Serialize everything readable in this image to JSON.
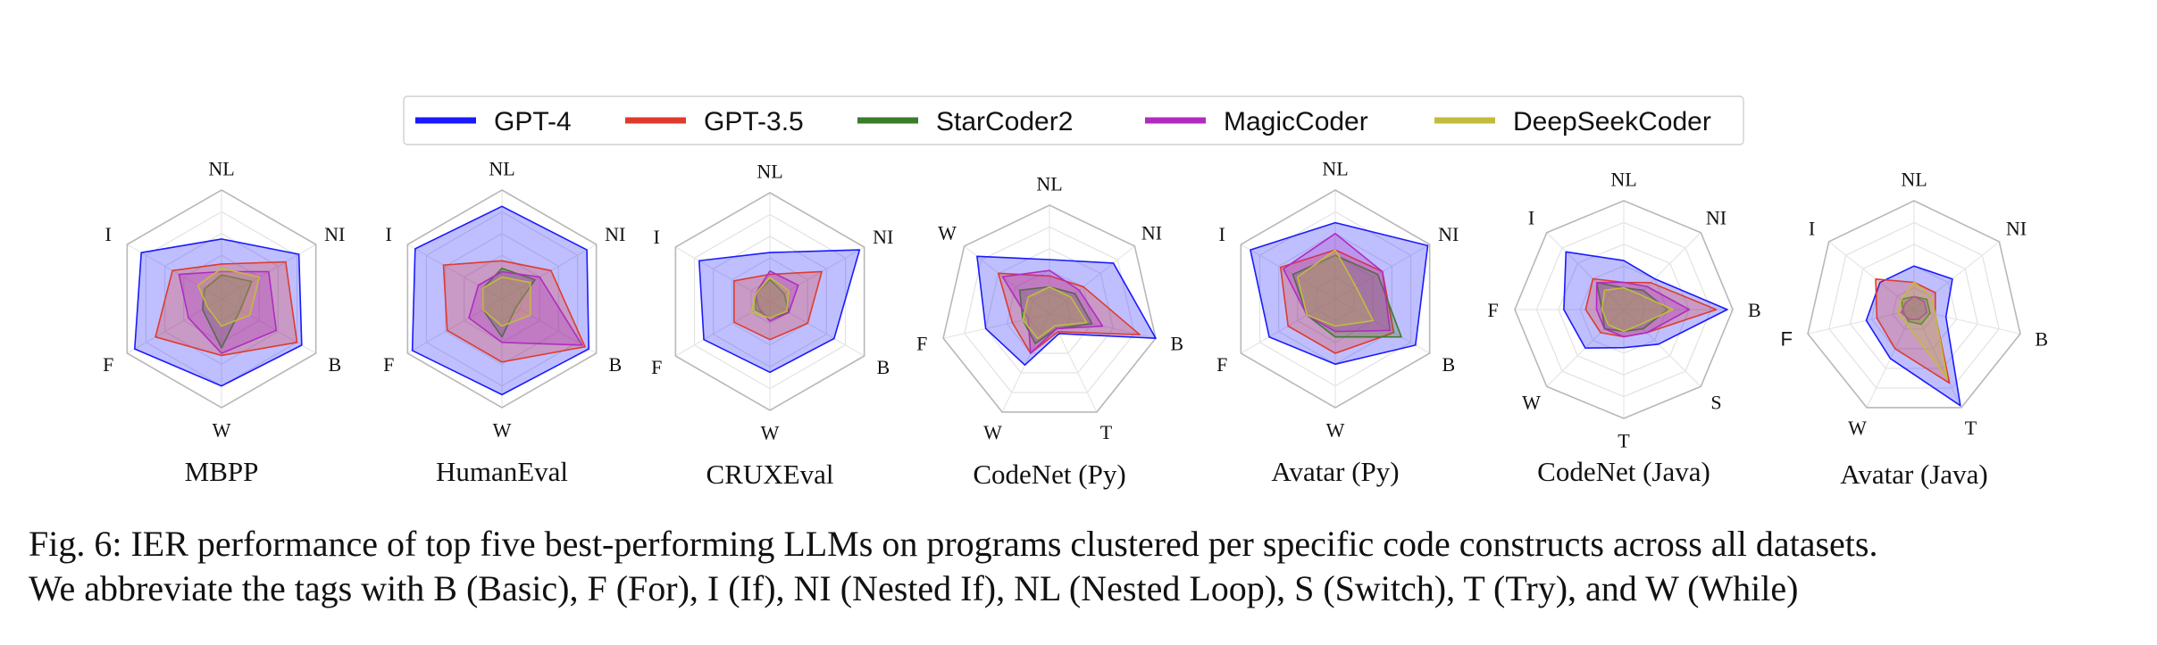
{
  "legend": [
    {
      "name": "GPT-4",
      "color": "#1a1aff"
    },
    {
      "name": "GPT-3.5",
      "color": "#e03a2e"
    },
    {
      "name": "StarCoder2",
      "color": "#3a7d2a"
    },
    {
      "name": "MagicCoder",
      "color": "#b02cc0"
    },
    {
      "name": "DeepSeekCoder",
      "color": "#c2bc3c"
    }
  ],
  "caption": {
    "line1": "Fig. 6: IER performance of top five best-performing LLMs on programs clustered per specific code constructs across all datasets.",
    "line2": "We abbreviate the tags with B (Basic), F (For), I (If), NI (Nested If), NL (Nested Loop), S (Switch), T (Try), and W (While)"
  },
  "chart_data": [
    {
      "type": "radar",
      "title": "MBPP",
      "axes": [
        "NL",
        "NI",
        "B",
        "W",
        "F",
        "I"
      ],
      "rlim": [
        0,
        1
      ],
      "series": [
        {
          "name": "GPT-4",
          "values": [
            0.55,
            0.82,
            0.85,
            0.8,
            0.92,
            0.85
          ]
        },
        {
          "name": "GPT-3.5",
          "values": [
            0.32,
            0.68,
            0.8,
            0.52,
            0.7,
            0.52
          ]
        },
        {
          "name": "StarCoder2",
          "values": [
            0.22,
            0.32,
            0.2,
            0.45,
            0.2,
            0.18
          ]
        },
        {
          "name": "MagicCoder",
          "values": [
            0.25,
            0.5,
            0.58,
            0.5,
            0.35,
            0.45
          ]
        },
        {
          "name": "DeepSeekCoder",
          "values": [
            0.28,
            0.4,
            0.3,
            0.25,
            0.15,
            0.25
          ]
        }
      ]
    },
    {
      "type": "radar",
      "title": "HumanEval",
      "axes": [
        "NL",
        "NI",
        "B",
        "W",
        "F",
        "I"
      ],
      "rlim": [
        0,
        1
      ],
      "series": [
        {
          "name": "GPT-4",
          "values": [
            0.85,
            0.9,
            0.92,
            0.88,
            0.95,
            0.92
          ]
        },
        {
          "name": "GPT-3.5",
          "values": [
            0.35,
            0.52,
            0.88,
            0.58,
            0.58,
            0.62
          ]
        },
        {
          "name": "StarCoder2",
          "values": [
            0.28,
            0.35,
            0.15,
            0.35,
            0.2,
            0.2
          ]
        },
        {
          "name": "MagicCoder",
          "values": [
            0.25,
            0.4,
            0.85,
            0.4,
            0.35,
            0.25
          ]
        },
        {
          "name": "DeepSeekCoder",
          "values": [
            0.2,
            0.3,
            0.3,
            0.25,
            0.2,
            0.2
          ]
        }
      ]
    },
    {
      "type": "radar",
      "title": "CRUXEval",
      "axes": [
        "NL",
        "NI",
        "B",
        "W",
        "F",
        "I"
      ],
      "rlim": [
        0,
        1
      ],
      "series": [
        {
          "name": "GPT-4",
          "values": [
            0.45,
            0.95,
            0.68,
            0.65,
            0.7,
            0.75
          ]
        },
        {
          "name": "GPT-3.5",
          "values": [
            0.25,
            0.55,
            0.4,
            0.35,
            0.38,
            0.38
          ]
        },
        {
          "name": "StarCoder2",
          "values": [
            0.2,
            0.15,
            0.2,
            0.15,
            0.15,
            0.15
          ]
        },
        {
          "name": "MagicCoder",
          "values": [
            0.28,
            0.3,
            0.2,
            0.18,
            0.12,
            0.15
          ]
        },
        {
          "name": "DeepSeekCoder",
          "values": [
            0.22,
            0.2,
            0.18,
            0.15,
            0.2,
            0.15
          ]
        }
      ]
    },
    {
      "type": "radar",
      "title": "CodeNet (Py)",
      "axes": [
        "NL",
        "NI",
        "B",
        "T",
        "W",
        "F",
        "W"
      ],
      "rlim": [
        0,
        1
      ],
      "series": [
        {
          "name": "GPT-4",
          "values": [
            0.5,
            0.75,
            1.0,
            0.2,
            0.52,
            0.6,
            0.85
          ]
        },
        {
          "name": "GPT-3.5",
          "values": [
            0.35,
            0.4,
            0.85,
            0.18,
            0.4,
            0.35,
            0.6
          ]
        },
        {
          "name": "StarCoder2",
          "values": [
            0.25,
            0.3,
            0.4,
            0.15,
            0.3,
            0.25,
            0.35
          ]
        },
        {
          "name": "MagicCoder",
          "values": [
            0.4,
            0.35,
            0.5,
            0.15,
            0.4,
            0.2,
            0.55
          ]
        },
        {
          "name": "DeepSeekCoder",
          "values": [
            0.25,
            0.25,
            0.35,
            0.12,
            0.25,
            0.25,
            0.25
          ]
        }
      ]
    },
    {
      "type": "radar",
      "title": "Avatar (Py)",
      "axes": [
        "NL",
        "NI",
        "B",
        "W",
        "F",
        "I"
      ],
      "rlim": [
        0,
        1
      ],
      "series": [
        {
          "name": "GPT-4",
          "values": [
            0.7,
            0.98,
            0.85,
            0.6,
            0.7,
            0.9
          ]
        },
        {
          "name": "GPT-3.5",
          "values": [
            0.45,
            0.5,
            0.62,
            0.5,
            0.5,
            0.58
          ]
        },
        {
          "name": "StarCoder2",
          "values": [
            0.4,
            0.45,
            0.7,
            0.35,
            0.3,
            0.45
          ]
        },
        {
          "name": "MagicCoder",
          "values": [
            0.6,
            0.5,
            0.58,
            0.3,
            0.3,
            0.55
          ]
        },
        {
          "name": "DeepSeekCoder",
          "values": [
            0.45,
            0.22,
            0.4,
            0.25,
            0.3,
            0.4
          ]
        }
      ]
    },
    {
      "type": "radar",
      "title": "CodeNet (Java)",
      "axes": [
        "NL",
        "NI",
        "B",
        "S",
        "T",
        "W",
        "F",
        "I"
      ],
      "rlim": [
        0,
        1
      ],
      "series": [
        {
          "name": "GPT-4",
          "values": [
            0.45,
            0.4,
            0.95,
            0.45,
            0.35,
            0.5,
            0.55,
            0.75
          ]
        },
        {
          "name": "GPT-3.5",
          "values": [
            0.25,
            0.35,
            0.85,
            0.3,
            0.25,
            0.3,
            0.35,
            0.4
          ]
        },
        {
          "name": "StarCoder2",
          "values": [
            0.2,
            0.25,
            0.4,
            0.25,
            0.2,
            0.25,
            0.2,
            0.35
          ]
        },
        {
          "name": "MagicCoder",
          "values": [
            0.25,
            0.3,
            0.6,
            0.3,
            0.25,
            0.25,
            0.25,
            0.35
          ]
        },
        {
          "name": "DeepSeekCoder",
          "values": [
            0.2,
            0.2,
            0.45,
            0.2,
            0.2,
            0.2,
            0.2,
            0.25
          ]
        }
      ]
    },
    {
      "type": "radar",
      "title": "Avatar (Java)",
      "axes": [
        "NL",
        "NI",
        "B",
        "T",
        "W",
        "F",
        "I"
      ],
      "rlim": [
        0,
        1
      ],
      "series": [
        {
          "name": "GPT-4",
          "values": [
            0.4,
            0.45,
            0.3,
            0.98,
            0.5,
            0.45,
            0.4
          ]
        },
        {
          "name": "GPT-3.5",
          "values": [
            0.25,
            0.25,
            0.2,
            0.75,
            0.4,
            0.35,
            0.45
          ]
        },
        {
          "name": "StarCoder2",
          "values": [
            0.12,
            0.15,
            0.15,
            0.15,
            0.12,
            0.1,
            0.15
          ]
        },
        {
          "name": "MagicCoder",
          "values": [
            0.12,
            0.12,
            0.12,
            0.1,
            0.1,
            0.12,
            0.1
          ]
        },
        {
          "name": "DeepSeekCoder",
          "values": [
            0.25,
            0.2,
            0.2,
            0.7,
            0.15,
            0.15,
            0.15
          ]
        }
      ]
    }
  ]
}
